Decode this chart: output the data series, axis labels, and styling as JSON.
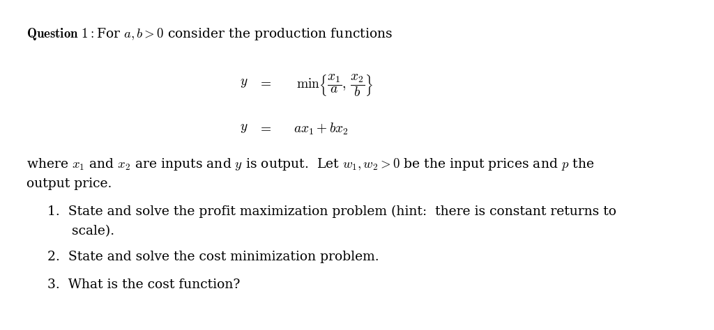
{
  "bg_color": "#ffffff",
  "font_size_main": 13.5,
  "font_size_eq": 14,
  "header_bold": "Question 1:",
  "header_rest": " For $a,b > 0$ consider the production functions",
  "eq1_y": "$y$",
  "eq1_eq": "$=$",
  "eq1_rhs": "$\\min\\left\\{\\dfrac{x_1}{a},\\,\\dfrac{x_2}{b}\\right\\}$",
  "eq2_y": "$y$",
  "eq2_eq": "$=$",
  "eq2_rhs": "$ax_1+bx_2$",
  "para_line1": "where $x_1$ and $x_2$ are inputs and $y$ is output.  Let $w_1,w_2>0$ be the input prices and $p$ the",
  "para_line2": "output price.",
  "item1_line1": "1.  State and solve the profit maximization problem (hint:  there is constant returns to",
  "item1_line2": "scale).",
  "item2": "2.  State and solve the cost minimization problem.",
  "item3": "3.  What is the cost function?"
}
